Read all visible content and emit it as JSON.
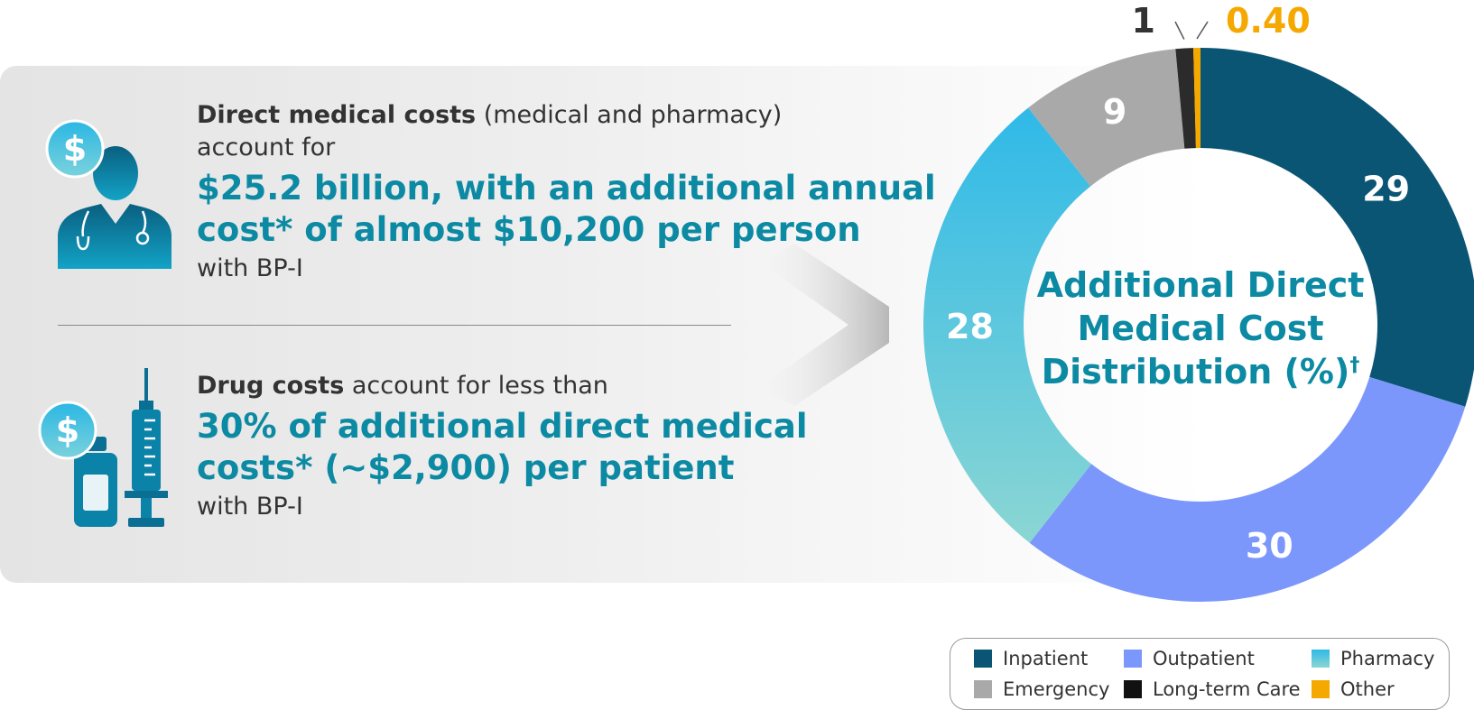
{
  "direct_costs": {
    "intro_bold": "Direct medical costs",
    "intro_rest": " (medical and pharmacy)",
    "intro_line2": "account for",
    "headline_line1": "$25.2 billion, with an additional annual",
    "headline_line2": "cost* of almost $10,200 per person",
    "tail": "with BP-I"
  },
  "drug_costs": {
    "intro_bold": "Drug costs",
    "intro_rest": " account for less than",
    "headline_line1": "30% of additional direct medical",
    "headline_line2": "costs* (~$2,900) per patient",
    "tail": "with BP-I"
  },
  "icons": {
    "doctor": "doctor-icon",
    "dollar": "dollar-icon",
    "medicine": "medicine-bottle-icon",
    "syringe": "syringe-icon",
    "arrow": "chevron-right-arrow-icon"
  },
  "chart_data": {
    "type": "pie",
    "title_line1": "Additional Direct",
    "title_line2": "Medical Cost",
    "title_line3": "Distribution (%)",
    "title_mark": "†",
    "slices": [
      {
        "name": "Inpatient",
        "value": 29,
        "label": "29",
        "color": "#0b5574"
      },
      {
        "name": "Outpatient",
        "value": 30,
        "label": "30",
        "color": "#7b97fb"
      },
      {
        "name": "Pharmacy",
        "value": 28,
        "label": "28",
        "color": "#2fb9e8",
        "color2": "#86d4d6"
      },
      {
        "name": "Emergency",
        "value": 9,
        "label": "9",
        "color": "#a9a9a9"
      },
      {
        "name": "Long-term Care",
        "value": 1,
        "label": "1",
        "color": "#2b2b2b"
      },
      {
        "name": "Other",
        "value": 0.4,
        "label": "0.40",
        "color": "#f5a800"
      }
    ]
  },
  "legend": [
    {
      "label": "Inpatient",
      "color": "#0b5574"
    },
    {
      "label": "Outpatient",
      "color": "#7b97fb"
    },
    {
      "label": "Pharmacy",
      "color": "#2fb9e8"
    },
    {
      "label": "Emergency",
      "color": "#a9a9a9"
    },
    {
      "label": "Long-term Care",
      "color": "#111111"
    },
    {
      "label": "Other",
      "color": "#f5a800"
    }
  ]
}
